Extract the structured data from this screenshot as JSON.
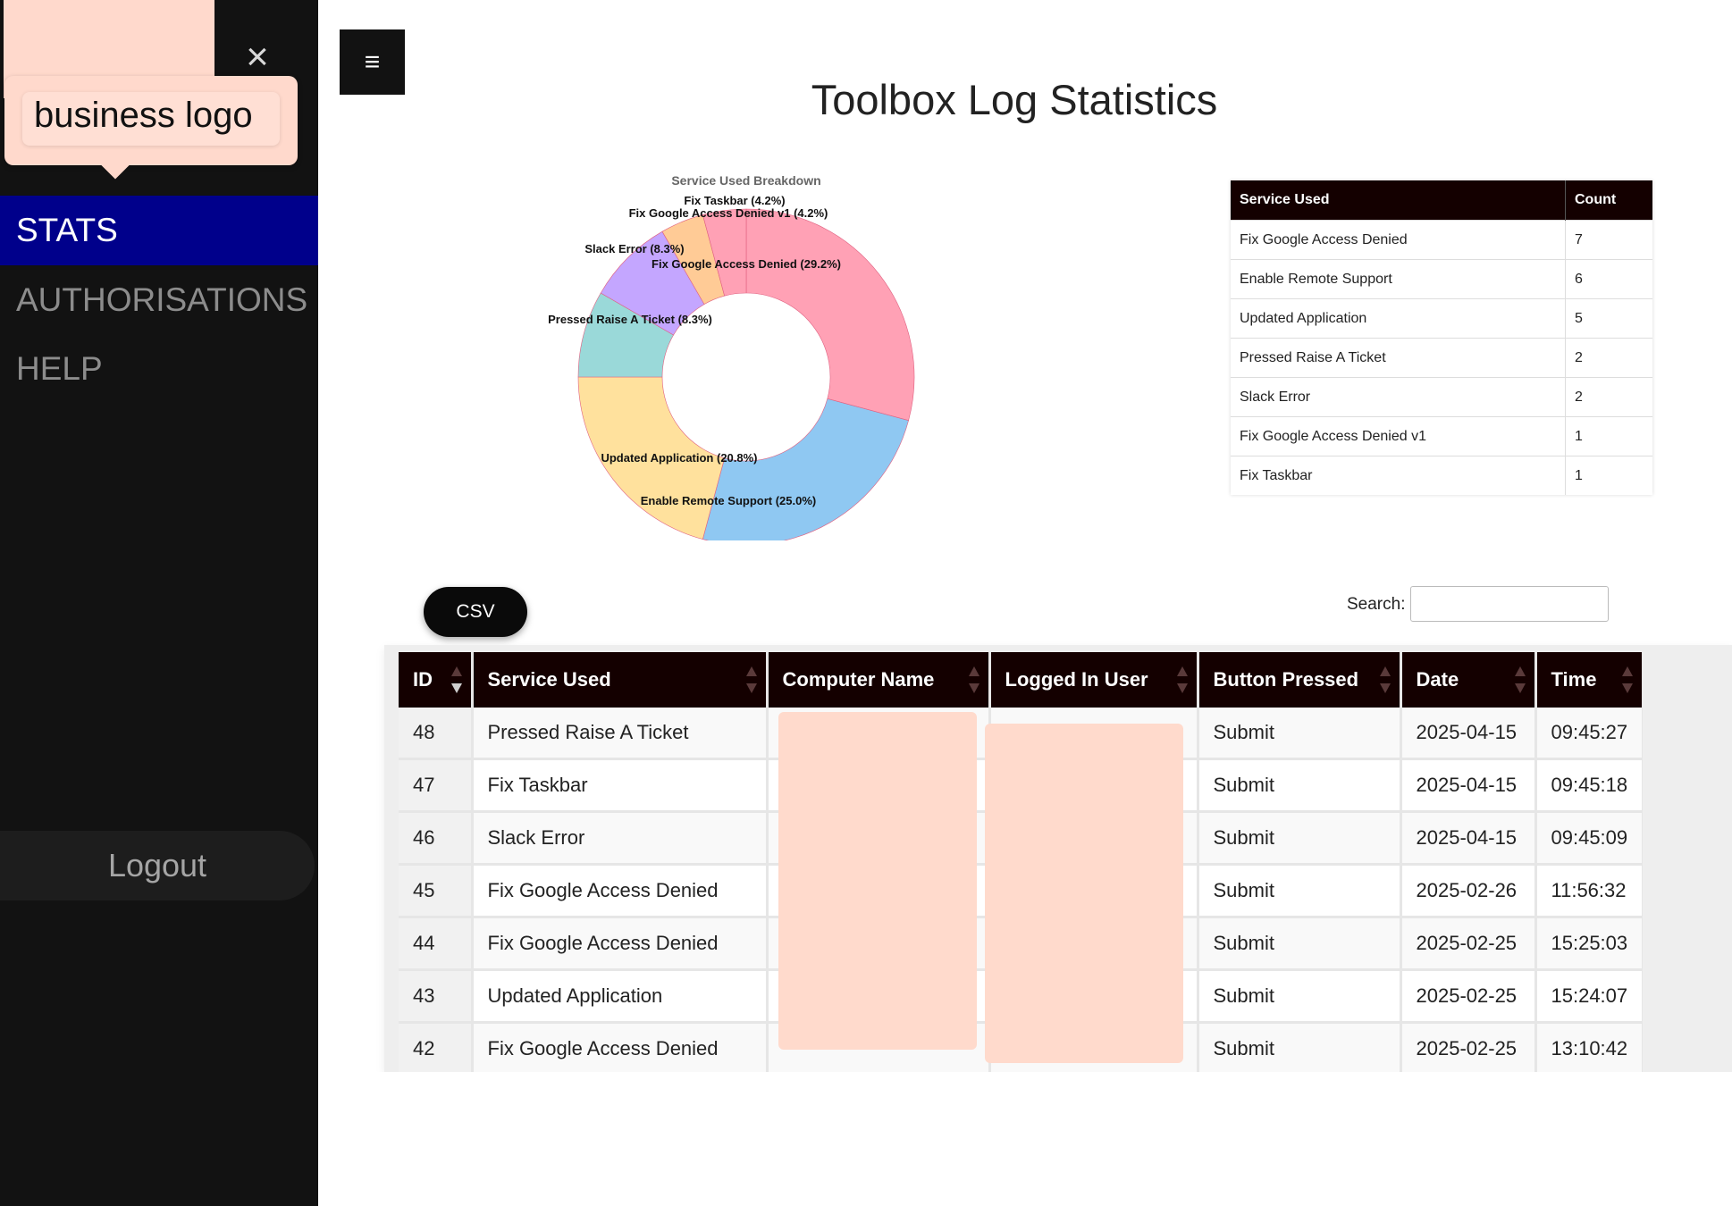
{
  "sidebar": {
    "logo_text": "business logo",
    "nav": [
      {
        "label": "STATS",
        "active": true
      },
      {
        "label": "AUTHORISATIONS",
        "active": false
      },
      {
        "label": "HELP",
        "active": false
      }
    ],
    "logout_label": "Logout",
    "close_icon": "×",
    "active_color": "#00008b"
  },
  "header": {
    "menu_icon": "≡",
    "title": "Toolbox Log Statistics"
  },
  "chart_data": {
    "type": "pie",
    "donut": true,
    "title": "Service Used Breakdown",
    "slices": [
      {
        "label": "Fix Google Access Denied",
        "value": 7,
        "percent": "29.2%",
        "color": "#ffa1b5"
      },
      {
        "label": "Enable Remote Support",
        "value": 6,
        "percent": "25.0%",
        "color": "#8fc8f2"
      },
      {
        "label": "Updated Application",
        "value": 5,
        "percent": "20.8%",
        "color": "#ffe19d"
      },
      {
        "label": "Pressed Raise A Ticket",
        "value": 2,
        "percent": "8.3%",
        "color": "#9ad9d9"
      },
      {
        "label": "Slack Error",
        "value": 2,
        "percent": "8.3%",
        "color": "#c4a6ff"
      },
      {
        "label": "Fix Google Access Denied v1",
        "value": 1,
        "percent": "4.2%",
        "color": "#ffcb96"
      },
      {
        "label": "Fix Taskbar",
        "value": 1,
        "percent": "4.2%",
        "color": "#ffa1b5"
      }
    ]
  },
  "summary": {
    "headers": [
      "Service Used",
      "Count"
    ],
    "rows": [
      [
        "Fix Google Access Denied",
        "7"
      ],
      [
        "Enable Remote Support",
        "6"
      ],
      [
        "Updated Application",
        "5"
      ],
      [
        "Pressed Raise A Ticket",
        "2"
      ],
      [
        "Slack Error",
        "2"
      ],
      [
        "Fix Google Access Denied v1",
        "1"
      ],
      [
        "Fix Taskbar",
        "1"
      ]
    ]
  },
  "controls": {
    "csv_label": "CSV",
    "search_label": "Search:",
    "search_value": ""
  },
  "log_table": {
    "headers": [
      "ID",
      "Service Used",
      "Computer Name",
      "Logged In User",
      "Button Pressed",
      "Date",
      "Time"
    ],
    "rows": [
      {
        "id": "48",
        "service": "Pressed Raise A Ticket",
        "computer": "",
        "user": "",
        "button": "Submit",
        "date": "2025-04-15",
        "time": "09:45:27"
      },
      {
        "id": "47",
        "service": "Fix Taskbar",
        "computer": "",
        "user": "",
        "button": "Submit",
        "date": "2025-04-15",
        "time": "09:45:18"
      },
      {
        "id": "46",
        "service": "Slack Error",
        "computer": "",
        "user": "",
        "button": "Submit",
        "date": "2025-04-15",
        "time": "09:45:09"
      },
      {
        "id": "45",
        "service": "Fix Google Access Denied",
        "computer": "",
        "user": "",
        "button": "Submit",
        "date": "2025-02-26",
        "time": "11:56:32"
      },
      {
        "id": "44",
        "service": "Fix Google Access Denied",
        "computer": "",
        "user": "",
        "button": "Submit",
        "date": "2025-02-25",
        "time": "15:25:03"
      },
      {
        "id": "43",
        "service": "Updated Application",
        "computer": "",
        "user": "",
        "button": "Submit",
        "date": "2025-02-25",
        "time": "15:24:07"
      },
      {
        "id": "42",
        "service": "Fix Google Access Denied",
        "computer": "",
        "user": "",
        "button": "Submit",
        "date": "2025-02-25",
        "time": "13:10:42"
      }
    ]
  }
}
